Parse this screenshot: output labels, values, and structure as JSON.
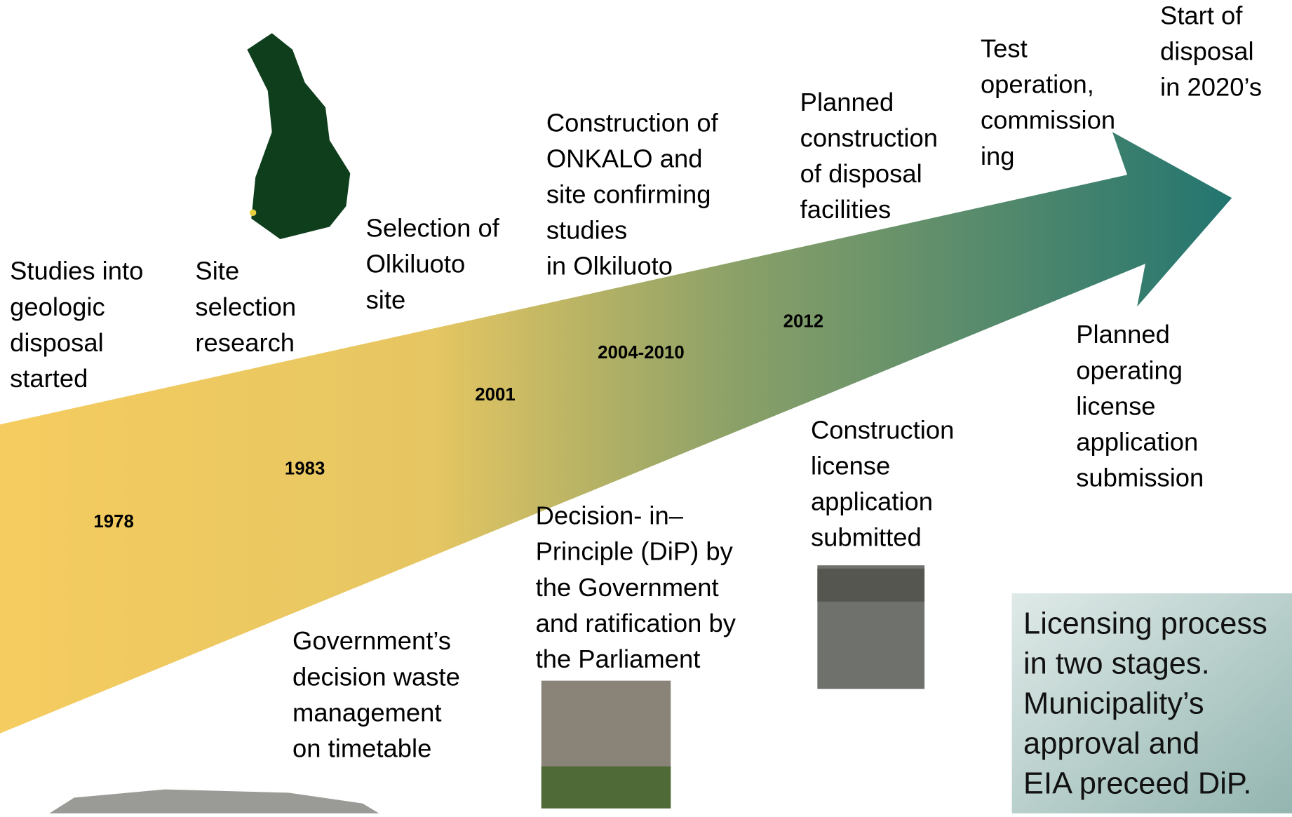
{
  "timeline": {
    "above": [
      {
        "lines": [
          "Studies into",
          "geologic",
          "disposal",
          "started"
        ]
      },
      {
        "lines": [
          "Site",
          "selection",
          "research"
        ]
      },
      {
        "lines": [
          "Selection of",
          "Olkiluoto",
          "site"
        ]
      },
      {
        "lines": [
          "Construction of",
          "ONKALO and",
          "site confirming",
          "studies",
          "in Olkiluoto"
        ]
      },
      {
        "lines": [
          "Planned",
          "construction",
          "of disposal",
          "facilities"
        ]
      },
      {
        "lines": [
          "Test",
          "operation,",
          "commission",
          "ing"
        ]
      },
      {
        "lines": [
          "Start of",
          "disposal",
          "in 2020’s"
        ]
      }
    ],
    "below": [
      {
        "lines": [
          "Government’s",
          "decision waste",
          "management",
          "on timetable"
        ]
      },
      {
        "lines": [
          "Decision- in–",
          "Principle (DiP) by",
          "the Government",
          "and ratification by",
          "the Parliament"
        ]
      },
      {
        "lines": [
          "Construction",
          "license",
          "application",
          "submitted"
        ]
      },
      {
        "lines": [
          "Planned",
          "operating",
          "license",
          "application",
          "submission"
        ]
      }
    ],
    "years": [
      "1978",
      "1983",
      "2001",
      "2004-2010",
      "2012"
    ]
  },
  "note": {
    "lines": [
      "Licensing process",
      "in two stages.",
      "Municipality’s",
      "approval and",
      "EIA preceed DiP."
    ]
  }
}
